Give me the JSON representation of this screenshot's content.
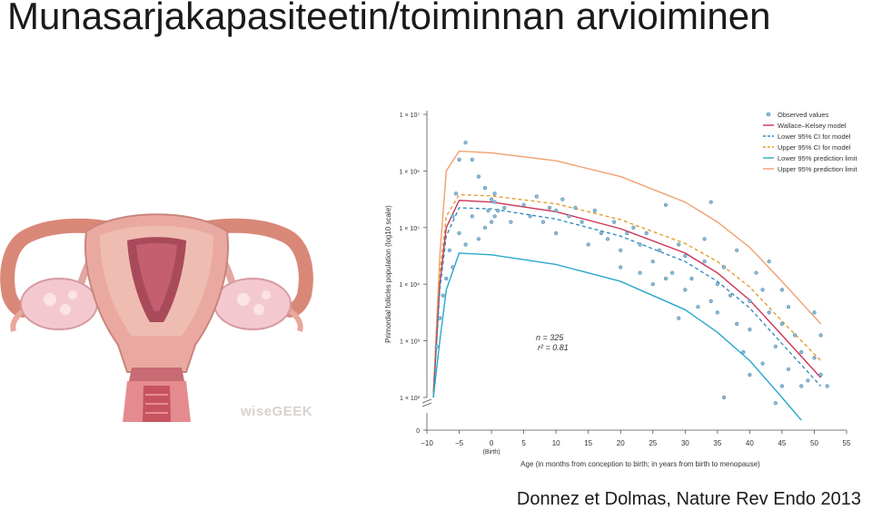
{
  "title": "Munasarjakapasiteetin/toiminnan arvioiminen",
  "citation": "Donnez et Dolmas, Nature Rev Endo 2013",
  "logo": "wiseGEEK",
  "chart_data": {
    "type": "scatter",
    "title": "",
    "xlabel": "Age (in months from conception to birth; in years from birth to menopause)",
    "ylabel": "Primordial follicles population (log10 scale)",
    "x_ticks": [
      "−10",
      "−5",
      "0",
      "5",
      "10",
      "15",
      "20",
      "25",
      "30",
      "35",
      "40",
      "45",
      "50",
      "55"
    ],
    "x_tick_note": "(Birth)",
    "y_ticks": [
      "0",
      "1 × 10²",
      "1 × 10³",
      "1 × 10⁴",
      "1 × 10⁵",
      "1 × 10⁶",
      "1 × 10⁷"
    ],
    "ylim": [
      0,
      7
    ],
    "xlim": [
      -10,
      55
    ],
    "stat_n": "n = 325",
    "stat_r2": "r² = 0.81",
    "legend": [
      {
        "label": "Observed values",
        "color": "#5b9bbd",
        "style": "dot"
      },
      {
        "label": "Wallace–Kelsey model",
        "color": "#cc3355",
        "style": "solid"
      },
      {
        "label": "Lower 95% CI for model",
        "color": "#3a8cc0",
        "style": "dashed"
      },
      {
        "label": "Upper 95% CI for model",
        "color": "#e0a030",
        "style": "dashed"
      },
      {
        "label": "Lower 95% prediction limit",
        "color": "#2aa8cc",
        "style": "solid"
      },
      {
        "label": "Upper 95% prediction limit",
        "color": "#f0a070",
        "style": "solid"
      }
    ],
    "series": [
      {
        "name": "Upper 95% prediction limit",
        "color": "#f0a070",
        "dash": "",
        "x": [
          -9,
          -8,
          -7,
          -5,
          0,
          10,
          20,
          30,
          35,
          40,
          45,
          51
        ],
        "y": [
          2.1,
          4.5,
          6.0,
          6.35,
          6.32,
          6.18,
          5.9,
          5.45,
          5.1,
          4.65,
          4.05,
          3.3
        ]
      },
      {
        "name": "Upper 95% CI for model",
        "color": "#e0a030",
        "dash": "4,3",
        "x": [
          -9,
          -8,
          -7,
          -5,
          0,
          10,
          20,
          30,
          35,
          40,
          45,
          51
        ],
        "y": [
          2.1,
          4.2,
          5.2,
          5.58,
          5.56,
          5.42,
          5.14,
          4.72,
          4.4,
          3.95,
          3.35,
          2.65
        ]
      },
      {
        "name": "Wallace–Kelsey model",
        "color": "#cc3355",
        "dash": "",
        "x": [
          -9,
          -8,
          -7,
          -5,
          0,
          10,
          20,
          30,
          35,
          40,
          45,
          51
        ],
        "y": [
          2.0,
          4.0,
          5.0,
          5.48,
          5.45,
          5.28,
          4.98,
          4.55,
          4.2,
          3.72,
          3.1,
          2.35
        ]
      },
      {
        "name": "Lower 95% CI for model",
        "color": "#3a8cc0",
        "dash": "4,3",
        "x": [
          -9,
          -8,
          -7,
          -5,
          0,
          10,
          20,
          30,
          35,
          40,
          45,
          51
        ],
        "y": [
          2.0,
          3.9,
          4.85,
          5.35,
          5.33,
          5.15,
          4.85,
          4.4,
          4.05,
          3.58,
          2.95,
          2.2
        ]
      },
      {
        "name": "Lower 95% prediction limit",
        "color": "#2aa8cc",
        "dash": "",
        "x": [
          -9,
          -8,
          -7,
          -5,
          0,
          10,
          20,
          30,
          35,
          40,
          45,
          48
        ],
        "y": [
          2.0,
          3.0,
          3.9,
          4.55,
          4.52,
          4.35,
          4.05,
          3.55,
          3.15,
          2.65,
          2.0,
          1.6
        ]
      }
    ],
    "points": [
      [
        -8.5,
        2.9
      ],
      [
        -8,
        3.4
      ],
      [
        -7.5,
        3.8
      ],
      [
        -7,
        4.1
      ],
      [
        -6.5,
        4.6
      ],
      [
        -6,
        5.2
      ],
      [
        -5.5,
        5.6
      ],
      [
        -5,
        6.2
      ],
      [
        -4,
        6.5
      ],
      [
        -3,
        6.2
      ],
      [
        -2,
        5.9
      ],
      [
        -1,
        5.7
      ],
      [
        -0.5,
        5.3
      ],
      [
        0,
        5.5
      ],
      [
        0,
        5.1
      ],
      [
        0.5,
        5.6
      ],
      [
        -1,
        5.0
      ],
      [
        -2,
        4.8
      ],
      [
        -3,
        5.2
      ],
      [
        -4,
        4.7
      ],
      [
        -5,
        4.9
      ],
      [
        -6,
        4.3
      ],
      [
        0.5,
        5.2
      ],
      [
        0.5,
        5.45
      ],
      [
        1,
        5.3
      ],
      [
        2,
        5.35
      ],
      [
        3,
        5.1
      ],
      [
        5,
        5.4
      ],
      [
        6,
        5.2
      ],
      [
        7,
        5.55
      ],
      [
        8,
        5.1
      ],
      [
        9,
        5.35
      ],
      [
        10,
        5.3
      ],
      [
        10,
        4.9
      ],
      [
        11,
        5.5
      ],
      [
        12,
        5.2
      ],
      [
        13,
        5.35
      ],
      [
        14,
        5.1
      ],
      [
        15,
        4.7
      ],
      [
        16,
        5.3
      ],
      [
        17,
        4.9
      ],
      [
        18,
        4.8
      ],
      [
        19,
        5.1
      ],
      [
        20,
        4.3
      ],
      [
        20,
        4.6
      ],
      [
        21,
        4.9
      ],
      [
        22,
        5.0
      ],
      [
        23,
        4.7
      ],
      [
        24,
        4.9
      ],
      [
        25,
        4.4
      ],
      [
        25,
        4.0
      ],
      [
        26,
        4.6
      ],
      [
        27,
        5.4
      ],
      [
        28,
        4.2
      ],
      [
        29,
        4.7
      ],
      [
        30,
        3.9
      ],
      [
        30,
        4.5
      ],
      [
        31,
        4.1
      ],
      [
        32,
        3.6
      ],
      [
        33,
        4.8
      ],
      [
        34,
        5.45
      ],
      [
        35,
        4.0
      ],
      [
        35,
        3.5
      ],
      [
        36,
        4.3
      ],
      [
        37,
        3.8
      ],
      [
        38,
        3.3
      ],
      [
        39,
        2.8
      ],
      [
        40,
        3.7
      ],
      [
        40,
        3.2
      ],
      [
        41,
        4.2
      ],
      [
        42,
        2.6
      ],
      [
        43,
        3.5
      ],
      [
        44,
        2.9
      ],
      [
        45,
        3.3
      ],
      [
        45,
        2.2
      ],
      [
        45,
        3.9
      ],
      [
        46,
        2.5
      ],
      [
        47,
        3.1
      ],
      [
        48,
        2.8
      ],
      [
        49,
        2.3
      ],
      [
        50,
        2.7
      ],
      [
        50,
        3.5
      ],
      [
        51,
        2.4
      ],
      [
        51,
        3.1
      ],
      [
        36,
        2.0
      ],
      [
        44,
        1.9
      ],
      [
        48,
        2.2
      ],
      [
        52,
        2.2
      ],
      [
        33,
        4.4
      ],
      [
        38,
        4.6
      ],
      [
        42,
        3.9
      ],
      [
        27,
        4.1
      ],
      [
        23,
        4.2
      ],
      [
        29,
        3.4
      ],
      [
        34,
        3.7
      ],
      [
        40,
        2.4
      ],
      [
        46,
        3.6
      ],
      [
        43,
        4.4
      ]
    ]
  }
}
